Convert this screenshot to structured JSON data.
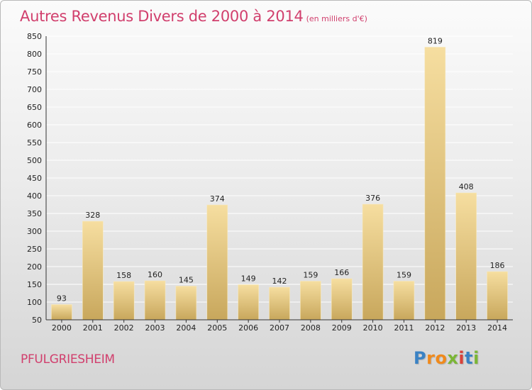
{
  "chart_data": {
    "type": "bar",
    "title": "Autres Revenus Divers de 2000 à 2014",
    "subtitle": "(en milliers d'€)",
    "categories": [
      "2000",
      "2001",
      "2002",
      "2003",
      "2004",
      "2005",
      "2006",
      "2007",
      "2008",
      "2009",
      "2010",
      "2011",
      "2012",
      "2013",
      "2014"
    ],
    "values": [
      93,
      328,
      158,
      160,
      145,
      374,
      149,
      142,
      159,
      166,
      376,
      159,
      819,
      408,
      186
    ],
    "ylim": [
      50,
      850
    ],
    "yticks": [
      50,
      100,
      150,
      200,
      250,
      300,
      350,
      400,
      450,
      500,
      550,
      600,
      650,
      700,
      750,
      800,
      850
    ],
    "grid": true,
    "legend": "none",
    "colors": {
      "bar_top": "#f6dea0",
      "bar_bottom": "#c8a75c",
      "title": "#d13f6d",
      "grid": "#ffffff"
    }
  },
  "commune": "PFULGRIESHEIM",
  "logo": {
    "letters": [
      "P",
      "r",
      "o",
      "x",
      "i",
      "t",
      "i"
    ],
    "colors": [
      "#3a82c4",
      "#f08a1c",
      "#f08a1c",
      "#7bb636",
      "#d9423a",
      "#3a82c4",
      "#7bb636"
    ]
  }
}
